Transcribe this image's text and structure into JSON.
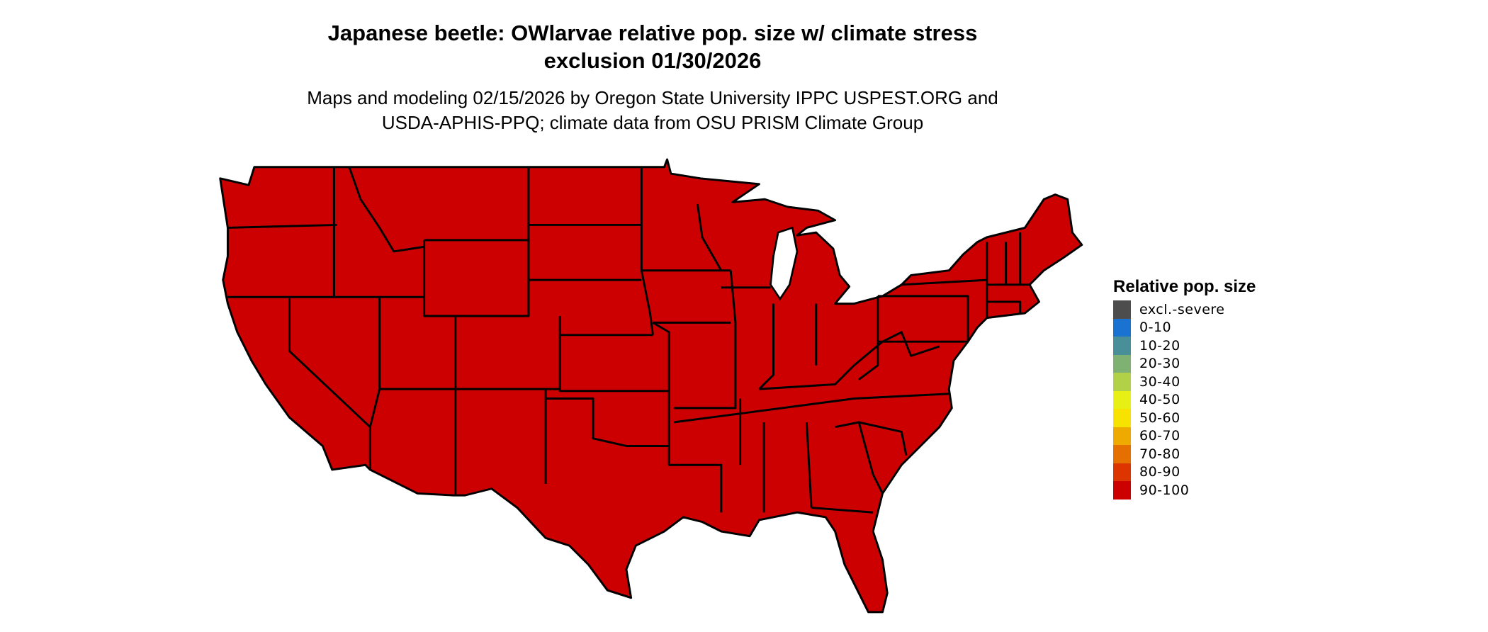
{
  "title": {
    "line1": "Japanese beetle: OWlarvae relative pop. size w/ climate stress",
    "line2": "exclusion 01/30/2026"
  },
  "subtitle": {
    "line1": "Maps and modeling 02/15/2026 by Oregon State University IPPC USPEST.ORG and",
    "line2": "USDA-APHIS-PPQ; climate data from OSU PRISM Climate Group"
  },
  "map": {
    "region": "Contiguous United States",
    "fill_category": "90-100",
    "fill_color": "#cc0000",
    "border_color": "#000000",
    "water_color": "#ffffff"
  },
  "legend": {
    "title": "Relative pop. size",
    "items": [
      {
        "label": "excl.-severe",
        "color": "#4d4d4d"
      },
      {
        "label": "0-10",
        "color": "#1a73d1"
      },
      {
        "label": "10-20",
        "color": "#488f9a"
      },
      {
        "label": "20-30",
        "color": "#7fb173"
      },
      {
        "label": "30-40",
        "color": "#b2d146"
      },
      {
        "label": "40-50",
        "color": "#e6f014"
      },
      {
        "label": "50-60",
        "color": "#f8e200"
      },
      {
        "label": "60-70",
        "color": "#efaa00"
      },
      {
        "label": "70-80",
        "color": "#e57000"
      },
      {
        "label": "80-90",
        "color": "#dc3500"
      },
      {
        "label": "90-100",
        "color": "#cc0000"
      }
    ]
  }
}
